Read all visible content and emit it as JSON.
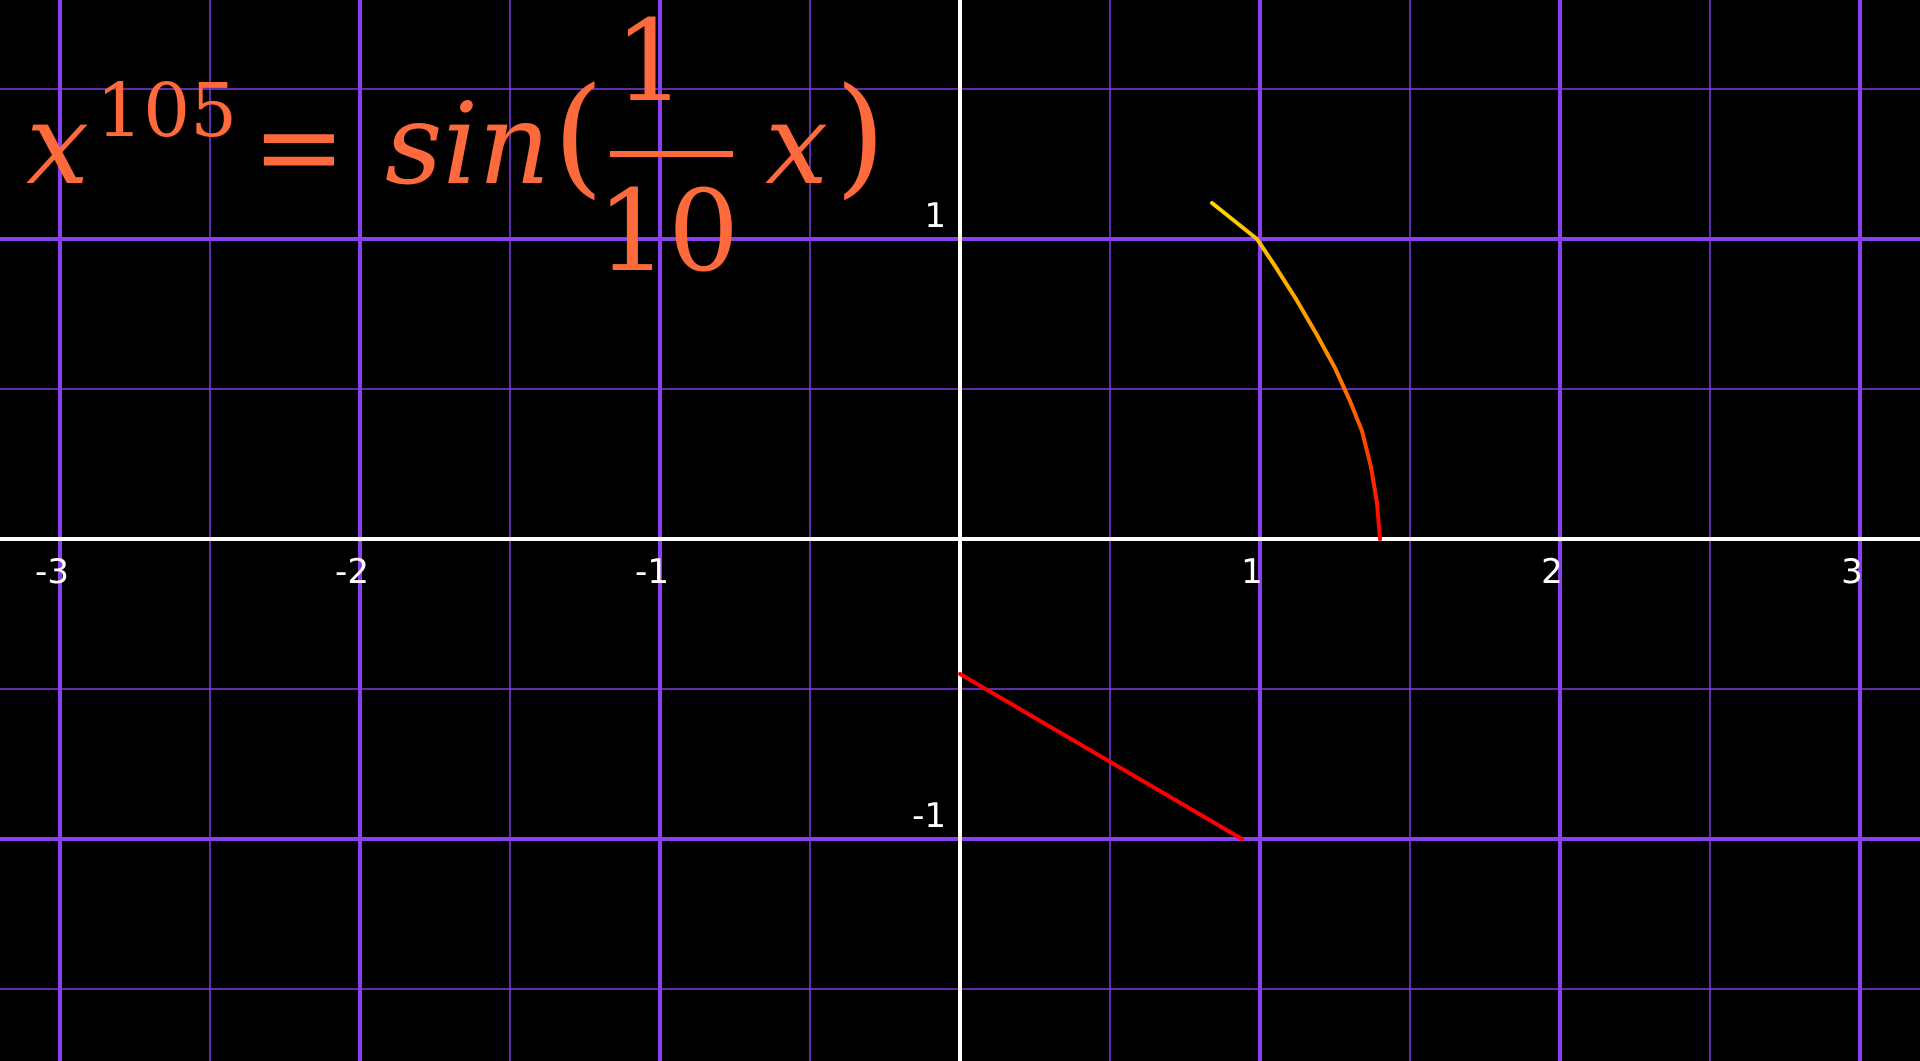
{
  "chart_data": {
    "type": "line",
    "title": "",
    "xlabel": "",
    "ylabel": "",
    "xlim": [
      -3.2,
      3.2
    ],
    "ylim": [
      -1.75,
      1.8
    ],
    "grid": true,
    "minor_grid": true,
    "x_ticks": [
      -3,
      -2,
      -1,
      1,
      2,
      3
    ],
    "x_tick_labels": [
      "-3",
      "-2",
      "-1",
      "1",
      "2",
      "3"
    ],
    "y_ticks": [
      1,
      -1
    ],
    "y_tick_labels": [
      "1",
      "-1"
    ],
    "equation": {
      "base": "x",
      "exponent": "105",
      "equals": "=",
      "func": "sin",
      "open_paren": "(",
      "frac_num": "1",
      "frac_den": "10",
      "var": "x",
      "close_paren": ")"
    },
    "series": [
      {
        "gradient": [
          "#ff0000",
          "#ff8c00",
          "#ffd700"
        ],
        "points": [
          [
            1.4,
            0.0
          ],
          [
            1.39,
            0.12
          ],
          [
            1.37,
            0.24
          ],
          [
            1.34,
            0.36
          ],
          [
            1.3,
            0.46
          ],
          [
            1.25,
            0.57
          ],
          [
            1.19,
            0.68
          ],
          [
            1.12,
            0.8
          ],
          [
            1.05,
            0.91
          ],
          [
            0.99,
            1.0
          ],
          [
            0.84,
            1.12
          ]
        ]
      },
      {
        "gradient": [
          "#ff0000",
          "#ff0000"
        ],
        "points": [
          [
            0.0,
            -0.45
          ],
          [
            0.94,
            -1.0
          ]
        ]
      }
    ],
    "colors": {
      "background": "#000000",
      "axis": "#ffffff",
      "major_grid": "#8a3ff0",
      "minor_grid": "#7d3ee0",
      "equation": "#ff6a3d",
      "tick_label": "#ffffff"
    }
  }
}
